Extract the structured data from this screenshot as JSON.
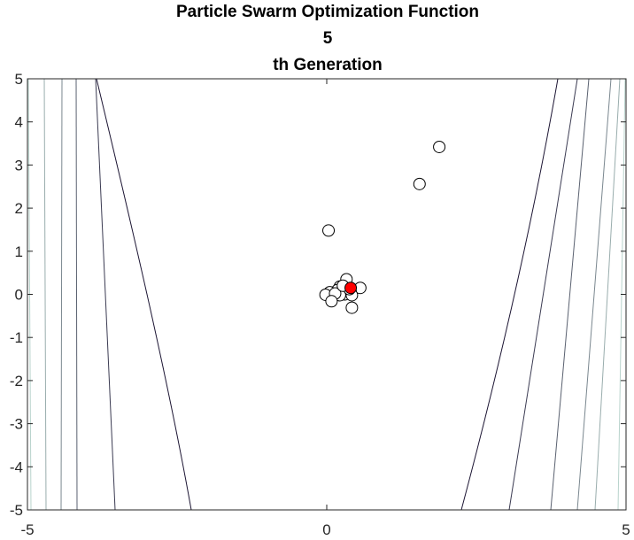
{
  "chart_data": {
    "type": "scatter",
    "title_lines": [
      "Particle Swarm Optimization Function",
      "5",
      "th Generation"
    ],
    "xlabel": "",
    "ylabel": "",
    "xlim": [
      -5,
      5
    ],
    "ylim": [
      -5,
      5
    ],
    "x_ticks": [
      "-5",
      "0",
      "5"
    ],
    "y_ticks": [
      "5",
      "4",
      "3",
      "2",
      "1",
      "0",
      "-1",
      "-2",
      "-3",
      "-4",
      "-5"
    ],
    "grid": false,
    "legend": "none",
    "background": "contour",
    "particles": [
      {
        "x": 1.88,
        "y": 3.42
      },
      {
        "x": 1.55,
        "y": 2.56
      },
      {
        "x": 0.03,
        "y": 1.48
      },
      {
        "x": 0.33,
        "y": 0.35
      },
      {
        "x": 0.56,
        "y": 0.15
      },
      {
        "x": 0.22,
        "y": 0.18
      },
      {
        "x": 0.28,
        "y": 0.14
      },
      {
        "x": 0.18,
        "y": 0.1
      },
      {
        "x": 0.25,
        "y": 0.05
      },
      {
        "x": 0.32,
        "y": 0.08
      },
      {
        "x": 0.36,
        "y": 0.02
      },
      {
        "x": 0.3,
        "y": 0.0
      },
      {
        "x": 0.4,
        "y": 0.06
      },
      {
        "x": 0.05,
        "y": 0.05
      },
      {
        "x": -0.02,
        "y": -0.01
      },
      {
        "x": 0.22,
        "y": -0.02
      },
      {
        "x": 0.42,
        "y": -0.02
      },
      {
        "x": 0.14,
        "y": 0.02
      },
      {
        "x": 0.38,
        "y": 0.12
      },
      {
        "x": 0.27,
        "y": 0.2
      },
      {
        "x": 0.08,
        "y": -0.16
      },
      {
        "x": 0.42,
        "y": -0.31
      }
    ],
    "best": {
      "x": 0.4,
      "y": 0.15
    },
    "colors": {
      "particle_edge": "#000000",
      "particle_fill": "#ffffff",
      "best_fill": "#ff0000",
      "contour_dark": "#1c1533",
      "contour_light": "#b8d3cc",
      "axes": "#262626"
    }
  }
}
